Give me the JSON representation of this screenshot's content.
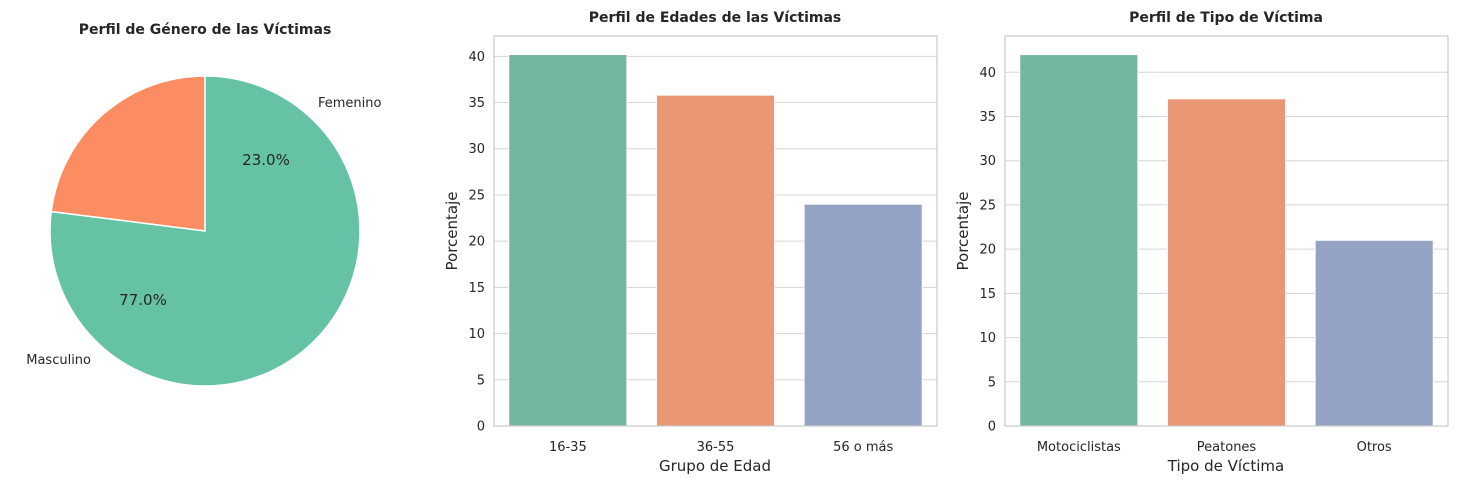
{
  "chart_data": [
    {
      "type": "pie",
      "title": "Perfil de Género de las Víctimas",
      "labels": [
        "Femenino",
        "Masculino"
      ],
      "values": [
        23.0,
        77.0
      ],
      "pct_labels": [
        "23.0%",
        "77.0%"
      ],
      "colors": [
        "#fc8d62",
        "#66c2a5"
      ]
    },
    {
      "type": "bar",
      "title": "Perfil de Edades de las Víctimas",
      "xlabel": "Grupo de Edad",
      "ylabel": "Porcentaje",
      "categories": [
        "16-35",
        "36-55",
        "56 o más"
      ],
      "values": [
        40.2,
        35.8,
        24.0
      ],
      "ylim": [
        0,
        42.2
      ],
      "yticks": [
        0,
        5,
        10,
        15,
        20,
        25,
        30,
        35,
        40
      ],
      "colors": [
        "#74b6a0",
        "#e99774",
        "#94a3c4"
      ],
      "grid": true
    },
    {
      "type": "bar",
      "title": "Perfil de Tipo de Víctima",
      "xlabel": "Tipo de Víctima",
      "ylabel": "Porcentaje",
      "categories": [
        "Motociclistas",
        "Peatones",
        "Otros"
      ],
      "values": [
        42.0,
        37.0,
        21.0
      ],
      "ylim": [
        0,
        44.1
      ],
      "yticks": [
        0,
        5,
        10,
        15,
        20,
        25,
        30,
        35,
        40
      ],
      "colors": [
        "#74b6a0",
        "#e99774",
        "#94a3c4"
      ],
      "grid": true
    }
  ]
}
